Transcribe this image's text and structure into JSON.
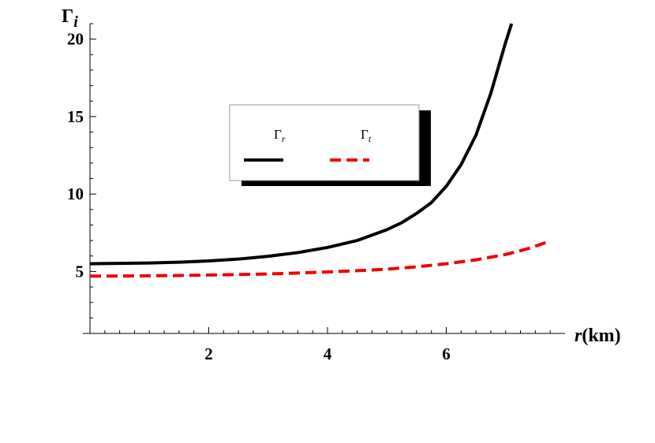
{
  "chart_data": {
    "type": "line",
    "xlabel": {
      "main": "r",
      "unit": "(km)"
    },
    "ylabel": {
      "main": "Γ",
      "sub": "i"
    },
    "xlim": [
      0,
      8
    ],
    "ylim": [
      1,
      21
    ],
    "x_ticks": [
      2,
      4,
      6
    ],
    "y_ticks": [
      5,
      10,
      15,
      20
    ],
    "grid": false,
    "legend_position": "top-center",
    "series": [
      {
        "name": "Γ",
        "name_sub": "r",
        "color": "#000000",
        "dash": "solid",
        "x": [
          0,
          0.5,
          1,
          1.5,
          2,
          2.5,
          3,
          3.5,
          4,
          4.5,
          5,
          5.25,
          5.5,
          5.75,
          6,
          6.25,
          6.5,
          6.75,
          7.0,
          7.1
        ],
        "y": [
          5.5,
          5.52,
          5.55,
          5.6,
          5.68,
          5.8,
          5.98,
          6.22,
          6.55,
          7.0,
          7.7,
          8.15,
          8.75,
          9.45,
          10.5,
          11.9,
          13.8,
          16.5,
          19.8,
          21.0
        ]
      },
      {
        "name": "Γ",
        "name_sub": "t",
        "color": "#ee0000",
        "dash": "dashed",
        "x": [
          0,
          0.5,
          1,
          1.5,
          2,
          2.5,
          3,
          3.5,
          4,
          4.5,
          5,
          5.5,
          6,
          6.5,
          7,
          7.4,
          7.7
        ],
        "y": [
          4.7,
          4.71,
          4.72,
          4.74,
          4.77,
          4.8,
          4.84,
          4.9,
          4.97,
          5.05,
          5.15,
          5.3,
          5.5,
          5.75,
          6.1,
          6.5,
          6.9
        ]
      }
    ]
  }
}
